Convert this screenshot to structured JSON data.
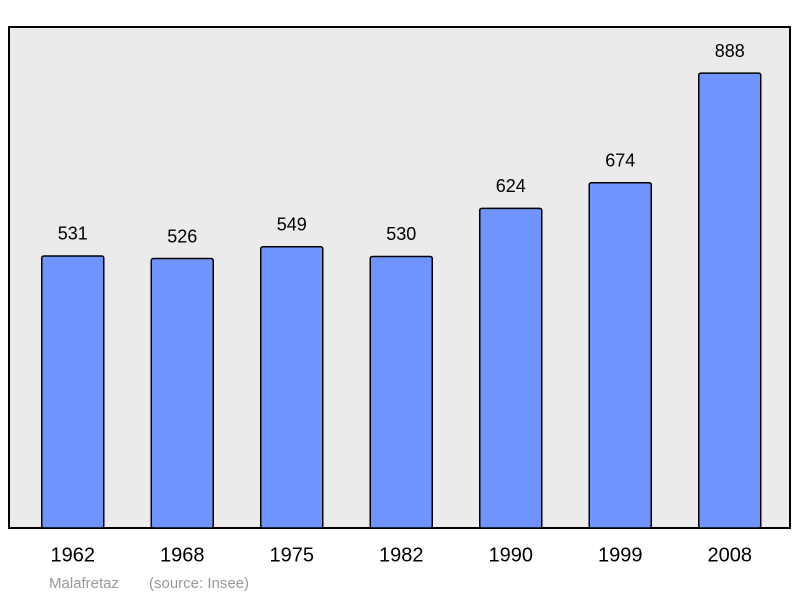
{
  "chart_data": {
    "type": "bar",
    "categories": [
      "1962",
      "1968",
      "1975",
      "1982",
      "1990",
      "1999",
      "2008"
    ],
    "values": [
      531,
      526,
      549,
      530,
      624,
      674,
      888
    ],
    "color": "#7094ff",
    "ylim": [
      0,
      978
    ],
    "place": "Malafretaz",
    "source": "(source: Insee)"
  }
}
